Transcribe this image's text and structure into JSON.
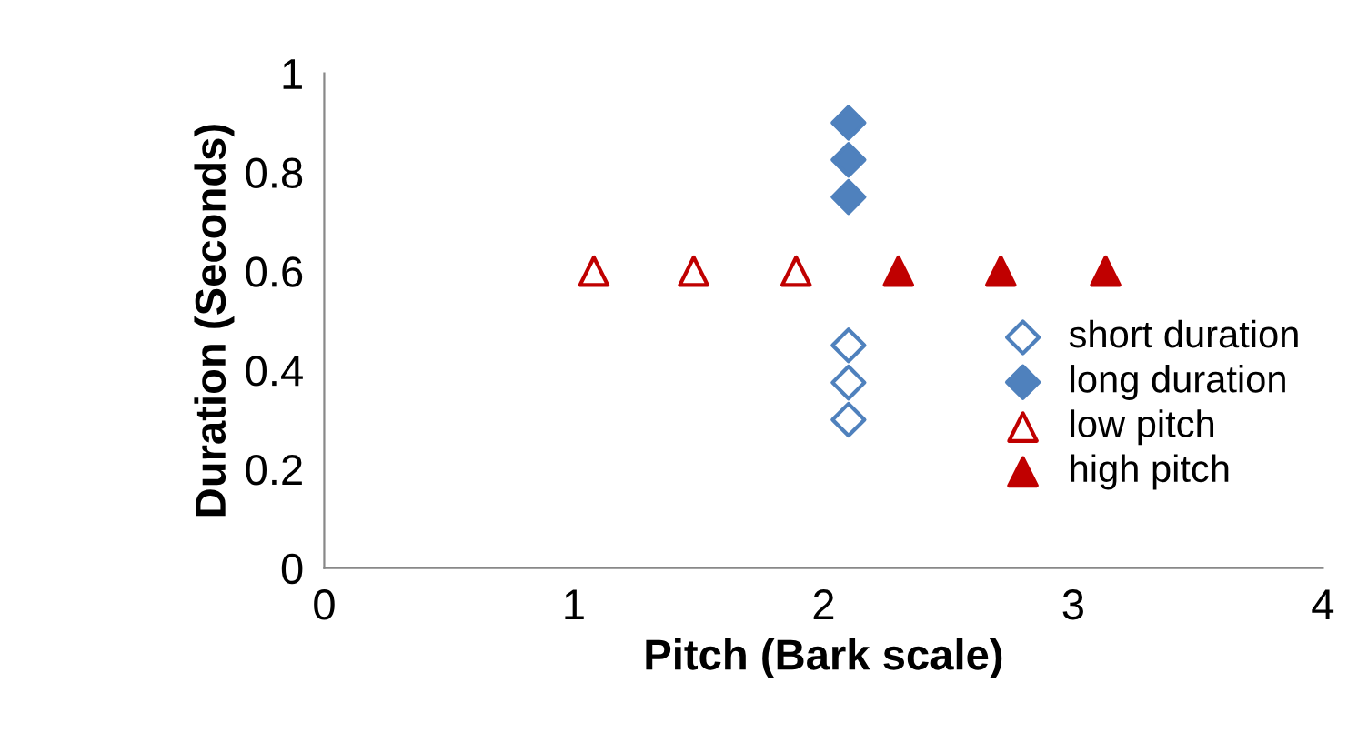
{
  "chart_data": {
    "type": "scatter",
    "xlabel": "Pitch (Bark scale)",
    "ylabel": "Duration (Seconds)",
    "xlim": [
      0,
      4
    ],
    "xticks": [
      0,
      1,
      2,
      3,
      4
    ],
    "ylim": [
      0,
      1
    ],
    "yticks": [
      0,
      {
        "value": 0.2,
        "label": "0.2"
      },
      {
        "value": 0.4,
        "label": "0.4"
      },
      {
        "value": 0.6,
        "label": "0.6"
      },
      {
        "value": 0.8,
        "label": "0.8"
      },
      1
    ],
    "grid": false,
    "legend": "right",
    "series": [
      {
        "name": "short duration",
        "color": "#4f81bd",
        "marker": "diamond",
        "colors": [
          "#ffffff",
          "#ffffff",
          "#ffffff"
        ],
        "x": [
          2.1,
          2.1,
          2.1
        ],
        "values": [
          0.45,
          0.375,
          0.3
        ]
      },
      {
        "name": "long duration",
        "color": "#4f81bd",
        "marker": "diamond",
        "x": [
          2.1,
          2.1,
          2.1
        ],
        "values": [
          0.9,
          0.825,
          0.75
        ]
      },
      {
        "name": "low pitch",
        "color": "#c00000",
        "marker": "triangle",
        "colors": [
          "#ffffff",
          "#ffffff",
          "#ffffff"
        ],
        "x": [
          1.08,
          1.48,
          1.89
        ],
        "values": [
          0.6,
          0.6,
          0.6
        ]
      },
      {
        "name": "high pitch",
        "color": "#c00000",
        "marker": "triangle",
        "x": [
          2.3,
          2.71,
          3.13
        ],
        "values": [
          0.6,
          0.6,
          0.6
        ]
      }
    ]
  }
}
